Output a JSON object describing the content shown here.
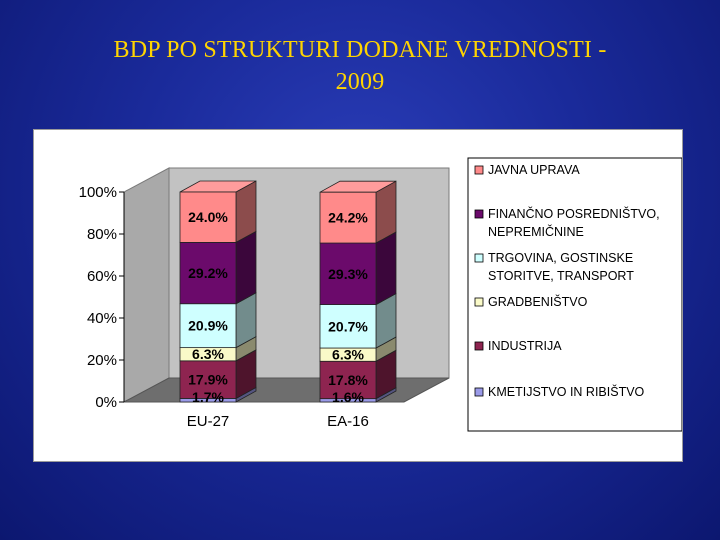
{
  "slide": {
    "title_line1": "BDP PO STRUKTURI DODANE VREDNOSTI -",
    "title_line2": "2009"
  },
  "chart_data": {
    "type": "bar",
    "stacked": true,
    "normalized": true,
    "three_d": true,
    "categories": [
      "EU-27",
      "EA-16"
    ],
    "y_ticks": [
      "0%",
      "20%",
      "40%",
      "60%",
      "80%",
      "100%"
    ],
    "ylim": [
      0,
      100
    ],
    "legend_position": "right",
    "series": [
      {
        "name": "KMETIJSTVO IN RIBIŠTVO",
        "values": [
          1.7,
          1.6
        ],
        "labels": [
          "1.7%",
          "1.6%"
        ],
        "color": "#9a9ae8"
      },
      {
        "name": "INDUSTRIJA",
        "values": [
          17.9,
          17.8
        ],
        "labels": [
          "17.9%",
          "17.8%"
        ],
        "color": "#8e2450"
      },
      {
        "name": "GRADBENIŠTVO",
        "values": [
          6.3,
          6.3
        ],
        "labels": [
          "6.3%",
          "6.3%"
        ],
        "color": "#fafac8"
      },
      {
        "name": "TRGOVINA, GOSTINSKE STORITVE, TRANSPORT",
        "name_lines": [
          "TRGOVINA, GOSTINSKE",
          "STORITVE, TRANSPORT"
        ],
        "values": [
          20.9,
          20.7
        ],
        "labels": [
          "20.9%",
          "20.7%"
        ],
        "color": "#cfffff"
      },
      {
        "name": "FINANČNO POSREDNIŠTVO, NEPREMIČNINE",
        "name_lines": [
          "FINANČNO POSREDNIŠTVO,",
          "NEPREMIČNINE"
        ],
        "values": [
          29.2,
          29.3
        ],
        "labels": [
          "29.2%",
          "29.3%"
        ],
        "color": "#6b0a6b"
      },
      {
        "name": "JAVNA UPRAVA",
        "values": [
          24.0,
          24.2
        ],
        "labels": [
          "24.0%",
          "24.2%"
        ],
        "color": "#ff8a8a"
      }
    ]
  }
}
